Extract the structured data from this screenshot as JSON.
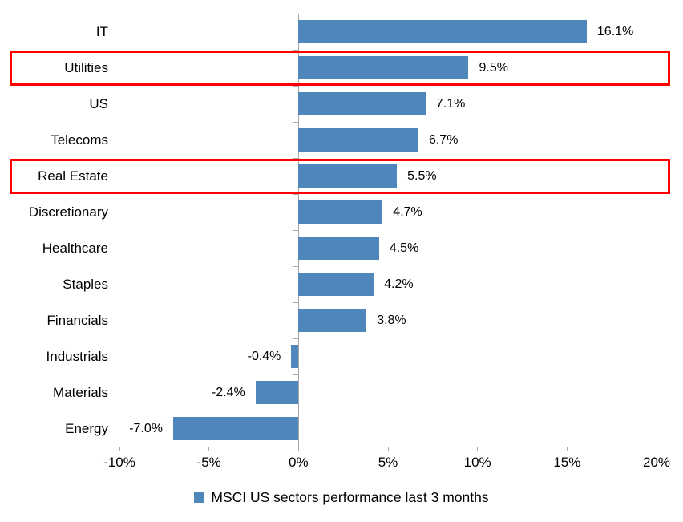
{
  "chart_data": {
    "type": "bar",
    "orientation": "horizontal",
    "title": "",
    "categories": [
      "IT",
      "Utilities",
      "US",
      "Telecoms",
      "Real Estate",
      "Discretionary",
      "Healthcare",
      "Staples",
      "Financials",
      "Industrials",
      "Materials",
      "Energy"
    ],
    "values": [
      16.1,
      9.5,
      7.1,
      6.7,
      5.5,
      4.7,
      4.5,
      4.2,
      3.8,
      -0.4,
      -2.4,
      -7.0
    ],
    "value_labels": [
      "16.1%",
      "9.5%",
      "7.1%",
      "6.7%",
      "5.5%",
      "4.7%",
      "4.5%",
      "4.2%",
      "3.8%",
      "-0.4%",
      "-2.4%",
      "-7.0%"
    ],
    "highlighted_categories": [
      "Utilities",
      "Real Estate"
    ],
    "xlim": [
      -10,
      20
    ],
    "x_tick_values": [
      -10,
      -5,
      0,
      5,
      10,
      15,
      20
    ],
    "x_tick_labels": [
      "-10%",
      "-5%",
      "0%",
      "5%",
      "10%",
      "15%",
      "20%"
    ],
    "grid": false,
    "legend": "MSCI US sectors performance last 3 months",
    "legend_position": "bottom",
    "colors": {
      "bar": "#4F86BC",
      "highlight_box": "#FF0000",
      "axis": "#A6A6A6",
      "text": "#000000"
    }
  }
}
